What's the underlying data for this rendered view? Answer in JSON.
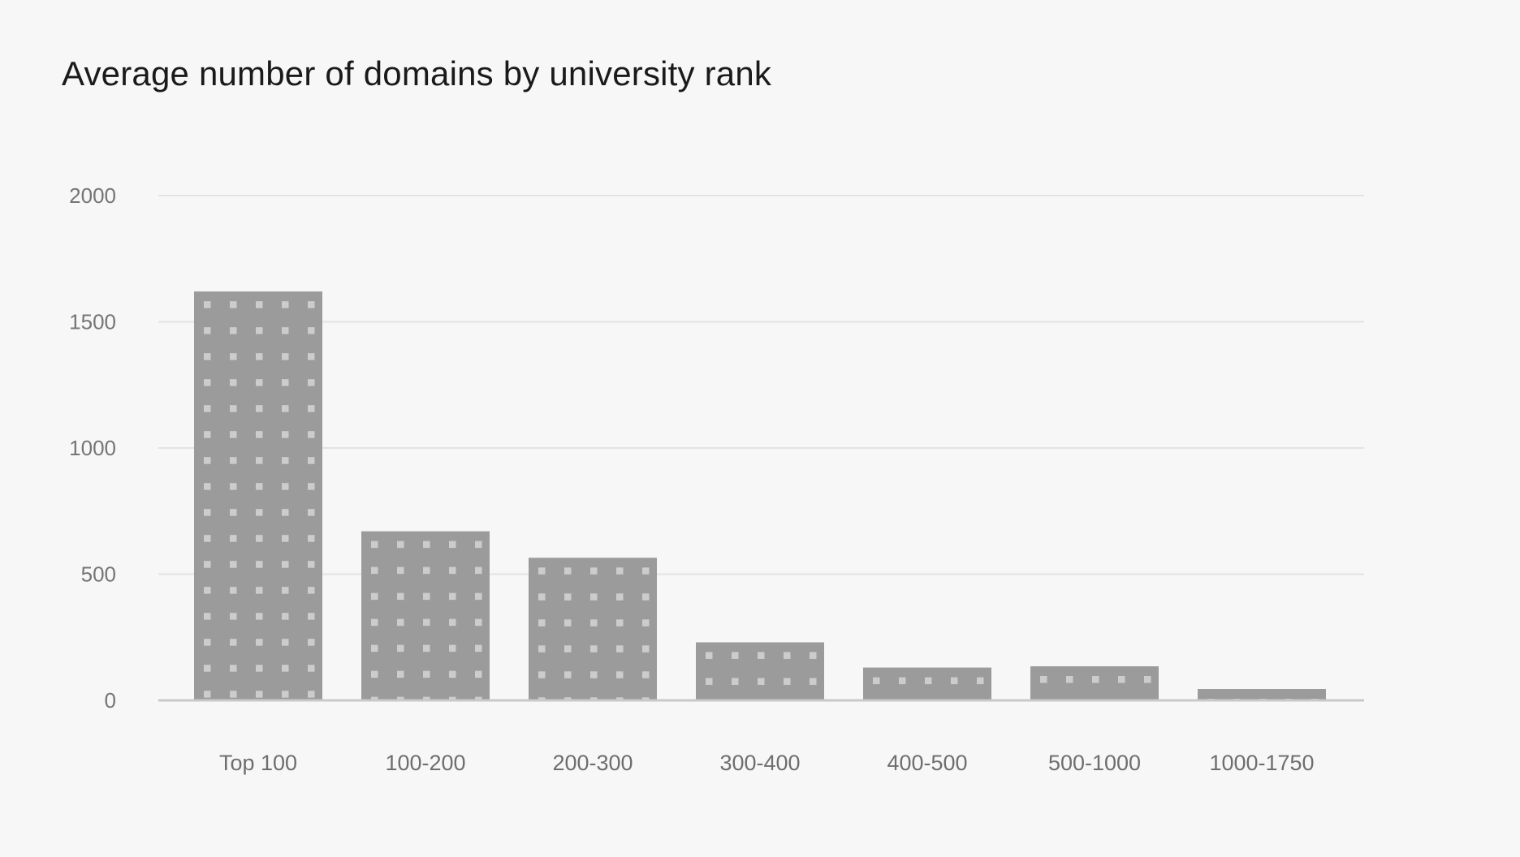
{
  "chart_data": {
    "type": "bar",
    "title": "Average number of domains by university rank",
    "xlabel": "",
    "ylabel": "",
    "categories": [
      "Top 100",
      "100-200",
      "200-300",
      "300-400",
      "400-500",
      "500-1000",
      "1000-1750"
    ],
    "values": [
      1620,
      670,
      565,
      230,
      130,
      135,
      45
    ],
    "ylim": [
      0,
      2000
    ],
    "yticks": [
      0,
      500,
      1000,
      1500,
      2000
    ],
    "grid": true,
    "legend": "none",
    "bar_texture": "square-dot-grid",
    "colors": {
      "background": "#f7f7f7",
      "title": "#1a1a1a",
      "bar": "#9b9b9b",
      "dot": "#cccccc",
      "gridline": "#e3e3e3",
      "axis_line": "#c9c9c9",
      "tick_label": "#757575",
      "category_label": "#6e6e6e"
    }
  }
}
